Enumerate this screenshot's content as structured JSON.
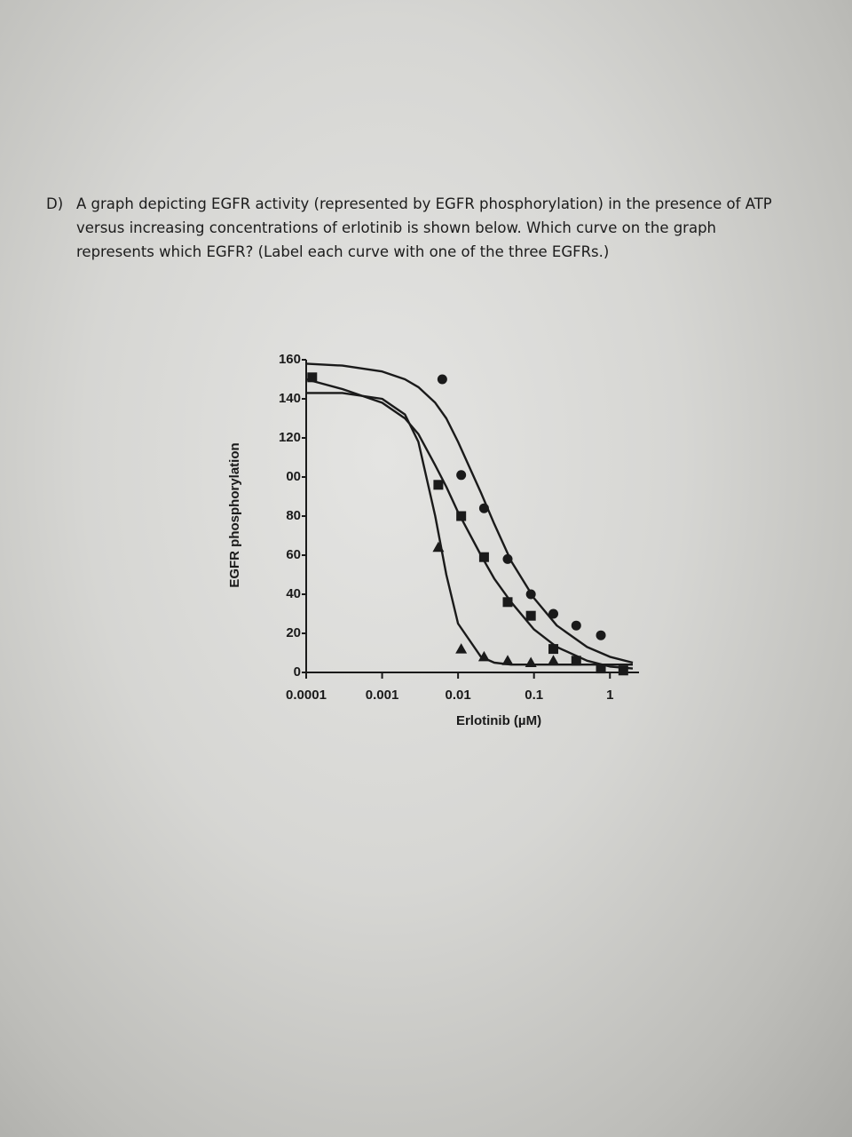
{
  "question": {
    "label": "D)",
    "lines": [
      "A graph depicting EGFR activity (represented by EGFR phosphorylation) in the presence of ATP",
      "versus increasing concentrations of erlotinib is shown below. Which curve on the graph",
      "represents which EGFR? (Label each curve with one of the three EGFRs.)"
    ]
  },
  "chart_data": {
    "type": "scatter",
    "ylabel": "EGFR phosphorylation",
    "xlabel": "Erlotinib (µM)",
    "log_x": true,
    "color": "#1a1a1a",
    "xlim": [
      0.0001,
      2
    ],
    "ylim": [
      0,
      160
    ],
    "xticks": [
      0.0001,
      0.001,
      0.01,
      0.1,
      1
    ],
    "yticks": [
      0,
      20,
      40,
      60,
      {
        "value": 100,
        "label": "00"
      },
      80,
      120,
      140,
      160
    ],
    "series": [
      {
        "marker": "circle",
        "x": [
          0.0062,
          0.011,
          0.022,
          0.045,
          0.091,
          0.18,
          0.36,
          0.76
        ],
        "values": [
          150,
          101,
          84,
          58,
          40,
          30,
          24,
          19
        ]
      },
      {
        "marker": "square",
        "x": [
          0.00012,
          0.0055,
          0.011,
          0.022,
          0.045,
          0.091,
          0.18,
          0.36,
          0.76,
          1.5
        ],
        "values": [
          151,
          96,
          80,
          59,
          36,
          29,
          12,
          6,
          2,
          1
        ]
      },
      {
        "marker": "triangle",
        "x": [
          0.0055,
          0.011,
          0.022,
          0.045,
          0.091,
          0.18
        ],
        "values": [
          64,
          12,
          8,
          6,
          5,
          6
        ]
      }
    ],
    "fits": [
      {
        "x": [
          0.0001,
          0.0003,
          0.001,
          0.002,
          0.003,
          0.005,
          0.007,
          0.01,
          0.02,
          0.03,
          0.05,
          0.1,
          0.2,
          0.5,
          1,
          2
        ],
        "values": [
          158,
          157,
          154,
          150,
          146,
          138,
          130,
          118,
          92,
          76,
          57,
          38,
          24,
          13,
          8,
          5
        ]
      },
      {
        "x": [
          0.0001,
          0.0003,
          0.001,
          0.002,
          0.003,
          0.005,
          0.007,
          0.01,
          0.02,
          0.03,
          0.05,
          0.1,
          0.2,
          0.5,
          1,
          2
        ],
        "values": [
          150,
          145,
          138,
          130,
          122,
          106,
          95,
          82,
          60,
          48,
          36,
          22,
          13,
          6,
          3,
          2
        ]
      },
      {
        "x": [
          0.0001,
          0.0003,
          0.001,
          0.002,
          0.003,
          0.005,
          0.007,
          0.01,
          0.02,
          0.03,
          0.05,
          0.1,
          0.2,
          0.5,
          1,
          2
        ],
        "values": [
          143,
          143,
          140,
          132,
          118,
          80,
          50,
          25,
          8,
          5,
          4,
          4,
          4,
          4,
          4,
          4
        ]
      }
    ]
  }
}
